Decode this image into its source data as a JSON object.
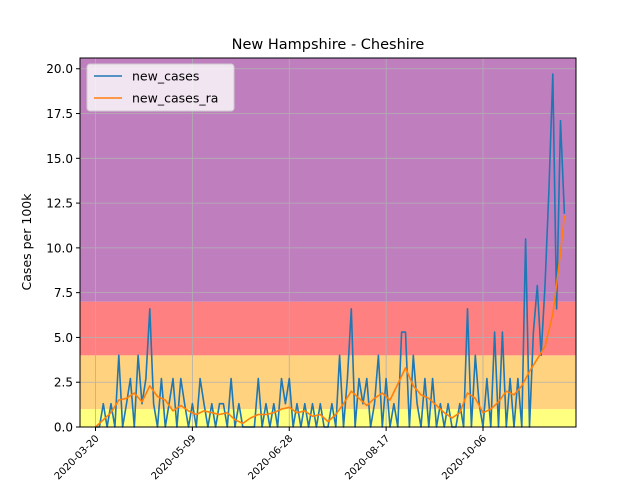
{
  "chart_data": {
    "type": "line",
    "title": "New Hampshire - Cheshire",
    "xlabel": "",
    "ylabel": "Cases per 100k",
    "xlim": [
      "2020-03-12",
      "2020-11-23"
    ],
    "ylim": [
      0,
      20.6
    ],
    "grid": true,
    "legend_position": "top-left",
    "x_ticks": [
      "2020-03-20",
      "2020-05-09",
      "2020-06-28",
      "2020-08-17",
      "2020-10-06"
    ],
    "x_tick_labels": [
      "2020-03-20",
      "2020-05-09",
      "2020-06-28",
      "2020-08-17",
      "2020-10-06"
    ],
    "y_ticks": [
      0,
      2.5,
      5,
      7.5,
      10,
      12.5,
      15,
      17.5,
      20
    ],
    "y_tick_labels": [
      "0.0",
      "2.5",
      "5.0",
      "7.5",
      "10.0",
      "12.5",
      "15.0",
      "17.5",
      "20.0"
    ],
    "bands": [
      {
        "from": 0,
        "to": 1,
        "color": "#ffff80"
      },
      {
        "from": 1,
        "to": 4,
        "color": "#ffd280"
      },
      {
        "from": 4,
        "to": 7,
        "color": "#ff8080"
      },
      {
        "from": 7,
        "to": 20.6,
        "color": "#bf7fbf"
      }
    ],
    "series": [
      {
        "name": "new_cases",
        "color": "#1f77b4",
        "x": [
          "2020-03-20",
          "2020-03-22",
          "2020-03-24",
          "2020-03-26",
          "2020-03-28",
          "2020-03-30",
          "2020-04-01",
          "2020-04-03",
          "2020-04-05",
          "2020-04-07",
          "2020-04-09",
          "2020-04-11",
          "2020-04-13",
          "2020-04-15",
          "2020-04-17",
          "2020-04-19",
          "2020-04-21",
          "2020-04-23",
          "2020-04-25",
          "2020-04-27",
          "2020-04-29",
          "2020-05-01",
          "2020-05-03",
          "2020-05-05",
          "2020-05-07",
          "2020-05-09",
          "2020-05-11",
          "2020-05-13",
          "2020-05-15",
          "2020-05-17",
          "2020-05-19",
          "2020-05-21",
          "2020-05-23",
          "2020-05-25",
          "2020-05-27",
          "2020-05-29",
          "2020-05-31",
          "2020-06-02",
          "2020-06-04",
          "2020-06-06",
          "2020-06-08",
          "2020-06-10",
          "2020-06-12",
          "2020-06-14",
          "2020-06-16",
          "2020-06-18",
          "2020-06-20",
          "2020-06-22",
          "2020-06-24",
          "2020-06-26",
          "2020-06-28",
          "2020-06-30",
          "2020-07-02",
          "2020-07-04",
          "2020-07-06",
          "2020-07-08",
          "2020-07-10",
          "2020-07-12",
          "2020-07-14",
          "2020-07-16",
          "2020-07-18",
          "2020-07-20",
          "2020-07-22",
          "2020-07-24",
          "2020-07-26",
          "2020-07-28",
          "2020-07-30",
          "2020-08-01",
          "2020-08-03",
          "2020-08-05",
          "2020-08-07",
          "2020-08-09",
          "2020-08-11",
          "2020-08-13",
          "2020-08-15",
          "2020-08-17",
          "2020-08-19",
          "2020-08-21",
          "2020-08-23",
          "2020-08-25",
          "2020-08-27",
          "2020-08-29",
          "2020-08-31",
          "2020-09-02",
          "2020-09-04",
          "2020-09-06",
          "2020-09-08",
          "2020-09-10",
          "2020-09-12",
          "2020-09-14",
          "2020-09-16",
          "2020-09-18",
          "2020-09-20",
          "2020-09-22",
          "2020-09-24",
          "2020-09-26",
          "2020-09-28",
          "2020-09-30",
          "2020-10-02",
          "2020-10-04",
          "2020-10-06",
          "2020-10-08",
          "2020-10-10",
          "2020-10-12",
          "2020-10-14",
          "2020-10-16",
          "2020-10-18",
          "2020-10-20",
          "2020-10-22",
          "2020-10-24",
          "2020-10-26",
          "2020-10-28",
          "2020-10-30",
          "2020-11-01",
          "2020-11-03",
          "2020-11-05",
          "2020-11-07",
          "2020-11-09",
          "2020-11-11",
          "2020-11-13",
          "2020-11-15",
          "2020-11-17"
        ],
        "values": [
          0,
          0,
          1.3,
          0,
          1.3,
          0,
          4,
          0,
          1.3,
          2.7,
          0,
          4,
          1.3,
          2.7,
          6.6,
          1.3,
          0,
          2.7,
          0,
          1.3,
          2.7,
          0,
          2.7,
          1.3,
          0,
          1.3,
          0,
          2.7,
          1.3,
          0,
          1.3,
          0,
          1.3,
          1.3,
          0,
          2.7,
          0,
          1.3,
          0,
          0,
          0,
          0,
          2.7,
          0,
          1.3,
          0,
          1.3,
          0,
          2.7,
          1.3,
          2.7,
          0,
          1.3,
          0,
          1.3,
          0,
          1.3,
          0,
          1.3,
          0,
          0,
          1.3,
          0,
          4,
          0,
          2.7,
          6.6,
          0,
          2.7,
          1.3,
          2.7,
          0,
          1.3,
          4,
          0,
          2.7,
          0,
          1.3,
          0,
          5.3,
          5.3,
          0,
          4,
          1.3,
          0,
          2.7,
          0,
          2.7,
          0,
          1.3,
          0,
          1.3,
          0,
          0,
          1.3,
          0,
          6.6,
          0,
          4,
          1.3,
          0,
          2.7,
          0,
          5.3,
          0,
          5.3,
          0,
          2.7,
          0,
          2.7,
          0,
          10.5,
          0,
          5.3,
          7.9,
          4,
          7.9,
          13.2,
          19.7,
          6.6,
          17.1,
          11.9
        ],
        "label_hidden": false
      },
      {
        "name": "new_cases_ra",
        "color": "#ff7f0e",
        "x": [
          "2020-03-20",
          "2020-03-24",
          "2020-03-28",
          "2020-04-01",
          "2020-04-05",
          "2020-04-09",
          "2020-04-13",
          "2020-04-17",
          "2020-04-21",
          "2020-04-25",
          "2020-04-29",
          "2020-05-03",
          "2020-05-07",
          "2020-05-11",
          "2020-05-15",
          "2020-05-19",
          "2020-05-23",
          "2020-05-27",
          "2020-05-31",
          "2020-06-04",
          "2020-06-08",
          "2020-06-12",
          "2020-06-16",
          "2020-06-20",
          "2020-06-24",
          "2020-06-28",
          "2020-07-02",
          "2020-07-06",
          "2020-07-10",
          "2020-07-14",
          "2020-07-18",
          "2020-07-22",
          "2020-07-26",
          "2020-07-30",
          "2020-08-03",
          "2020-08-07",
          "2020-08-11",
          "2020-08-15",
          "2020-08-19",
          "2020-08-23",
          "2020-08-27",
          "2020-08-31",
          "2020-09-04",
          "2020-09-08",
          "2020-09-12",
          "2020-09-16",
          "2020-09-20",
          "2020-09-24",
          "2020-09-28",
          "2020-10-02",
          "2020-10-06",
          "2020-10-10",
          "2020-10-14",
          "2020-10-18",
          "2020-10-22",
          "2020-10-26",
          "2020-10-30",
          "2020-11-03",
          "2020-11-07",
          "2020-11-11",
          "2020-11-15",
          "2020-11-17"
        ],
        "values": [
          0,
          0.4,
          0.8,
          1.5,
          1.6,
          1.9,
          1.4,
          2.3,
          1.7,
          1.5,
          0.9,
          1.2,
          0.9,
          0.7,
          0.9,
          0.8,
          0.7,
          0.8,
          0.4,
          0.2,
          0.5,
          0.7,
          0.7,
          0.8,
          1.0,
          1.1,
          0.8,
          0.9,
          0.6,
          0.7,
          0.3,
          0.7,
          1.3,
          2.0,
          1.6,
          1.2,
          1.6,
          1.9,
          1.5,
          2.4,
          3.3,
          2.3,
          1.8,
          1.6,
          1.2,
          0.8,
          0.5,
          0.8,
          1.9,
          1.6,
          0.8,
          1.0,
          1.4,
          2.0,
          1.8,
          2.3,
          3.1,
          3.8,
          4.5,
          6.3,
          9.7,
          11.8
        ]
      }
    ]
  },
  "legend": {
    "items": [
      {
        "label": "new_cases",
        "color": "#1f77b4"
      },
      {
        "label": "new_cases_ra",
        "color": "#ff7f0e"
      }
    ]
  }
}
